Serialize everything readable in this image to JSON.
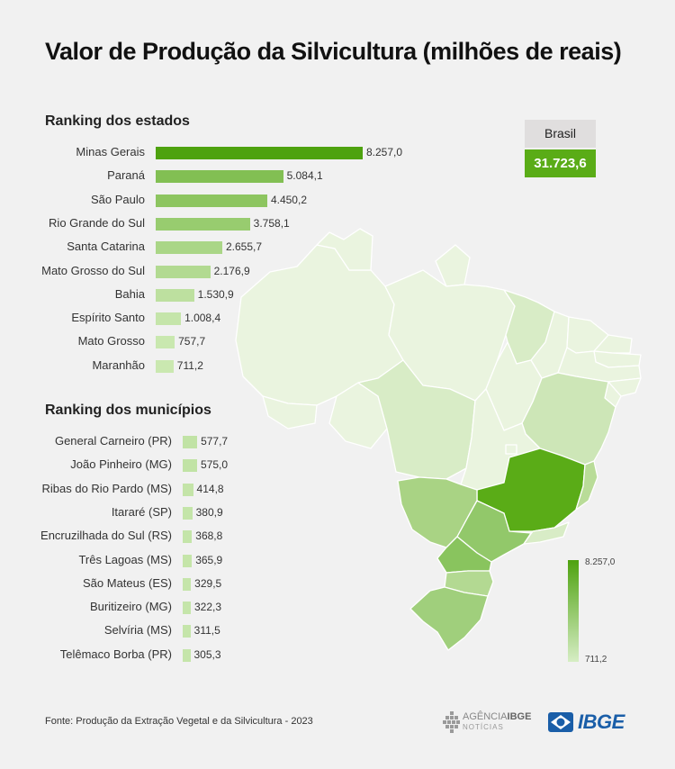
{
  "title": "Valor de Produção da Silvicultura (milhões de reais)",
  "brasil": {
    "label": "Brasil",
    "value": "31.723,6"
  },
  "chart_data": [
    {
      "type": "bar",
      "title": "Ranking dos estados",
      "orientation": "horizontal",
      "categories": [
        "Minas Gerais",
        "Paraná",
        "São Paulo",
        "Rio Grande do Sul",
        "Santa Catarina",
        "Mato Grosso do Sul",
        "Bahia",
        "Espírito Santo",
        "Mato Grosso",
        "Maranhão"
      ],
      "values": [
        8257.0,
        5084.1,
        4450.2,
        3758.1,
        2655.7,
        2176.9,
        1530.9,
        1008.4,
        757.7,
        711.2
      ],
      "value_labels": [
        "8.257,0",
        "5.084,1",
        "4.450,2",
        "3.758,1",
        "2.655,7",
        "2.176,9",
        "1.530,9",
        "1.008,4",
        "757,7",
        "711,2"
      ]
    },
    {
      "type": "bar",
      "title": "Ranking dos municípios",
      "orientation": "horizontal",
      "categories": [
        "General Carneiro (PR)",
        "João Pinheiro (MG)",
        "Ribas do Rio Pardo (MS)",
        "Itararé (SP)",
        "Encruzilhada do Sul (RS)",
        "Três Lagoas (MS)",
        "São Mateus (ES)",
        "Buritizeiro (MG)",
        "Selvíria (MS)",
        "Telêmaco Borba (PR)"
      ],
      "values": [
        577.7,
        575.0,
        414.8,
        380.9,
        368.8,
        365.9,
        329.5,
        322.3,
        311.5,
        305.3
      ],
      "value_labels": [
        "577,7",
        "575,0",
        "414,8",
        "380,9",
        "368,8",
        "365,9",
        "329,5",
        "322,3",
        "311,5",
        "305,3"
      ]
    }
  ],
  "map": {
    "type": "choropleth",
    "region": "Brasil",
    "color_max": "#4ea20f",
    "color_min": "#d6edc4",
    "legend_max": "8.257,0",
    "legend_min": "711,2"
  },
  "source": "Fonte: Produção da Extração Vegetal e da Silvicultura - 2023",
  "logos": {
    "agencia_top_a": "AGÊNCIA",
    "agencia_top_b": "IBGE",
    "agencia_bottom": "NOTÍCIAS",
    "ibge": "IBGE"
  }
}
